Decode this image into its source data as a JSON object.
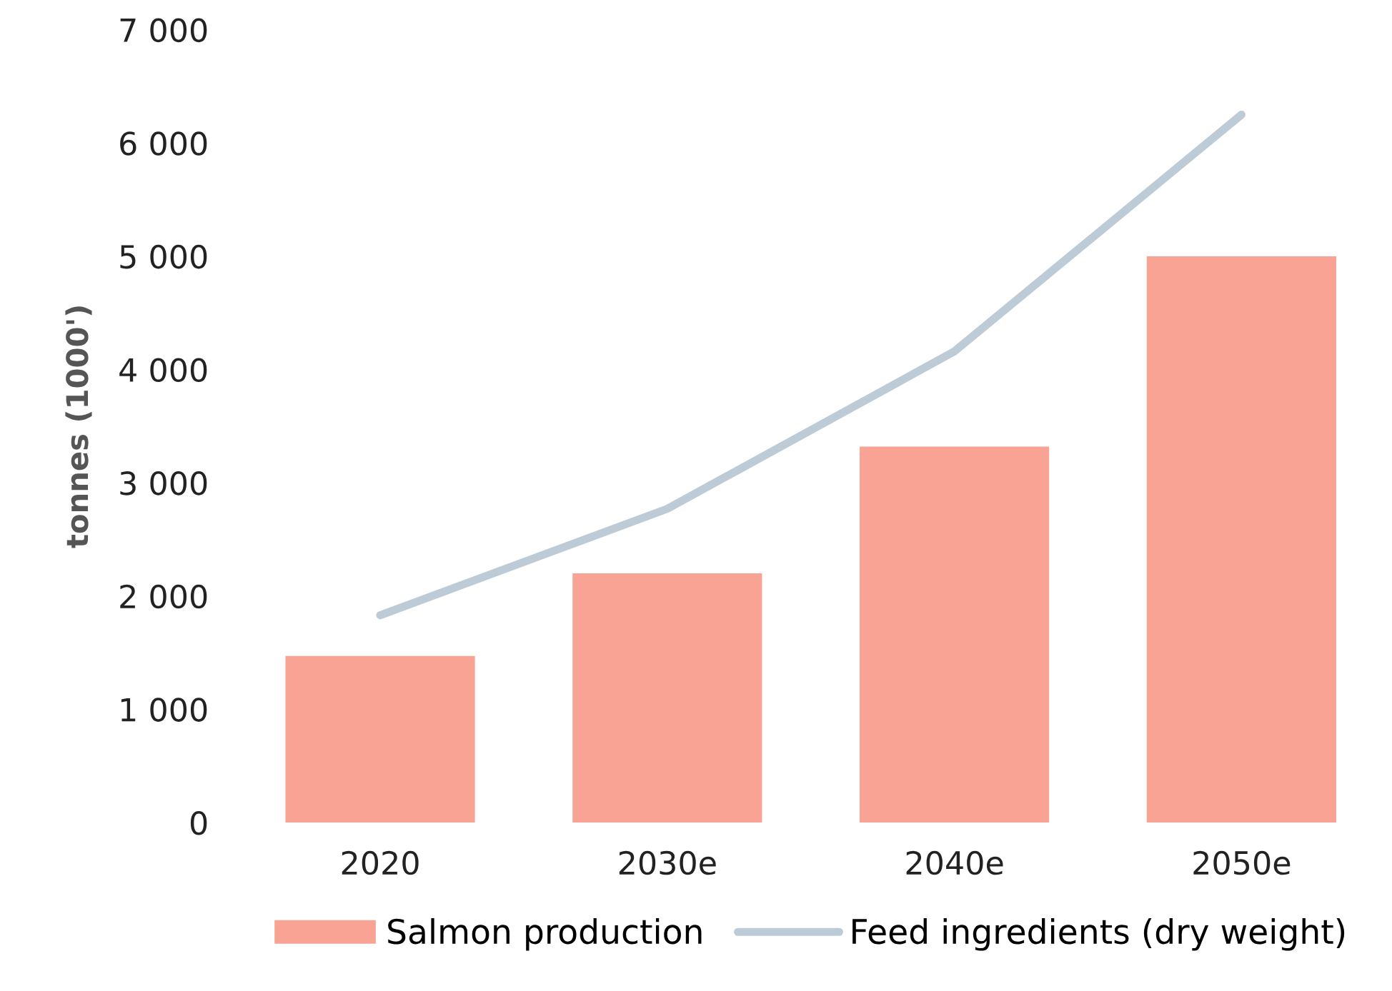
{
  "chart_data": {
    "type": "bar",
    "ylabel": "tonnes (1000')",
    "categories": [
      "2020",
      "2030e",
      "2040e",
      "2050e"
    ],
    "series": [
      {
        "name": "Salmon production",
        "color": "#f9a395",
        "values": [
          1470,
          2200,
          3320,
          5000
        ]
      },
      {
        "name": "Feed ingredients (dry weight)",
        "type": "line",
        "color": "#bccbd6",
        "values": [
          1830,
          2770,
          4160,
          6250
        ]
      }
    ],
    "ylim": [
      0,
      7000
    ],
    "yticks": [
      0,
      {
        "value": 1000,
        "label": "1 000"
      },
      {
        "value": 2000,
        "label": "2 000"
      },
      {
        "value": 3000,
        "label": "3 000"
      },
      {
        "value": 4000,
        "label": "4 000"
      },
      {
        "value": 5000,
        "label": "5 000"
      },
      {
        "value": 6000,
        "label": "6 000"
      },
      {
        "value": 7000,
        "label": "7 000"
      }
    ],
    "grid": false,
    "legend": "bottom"
  }
}
